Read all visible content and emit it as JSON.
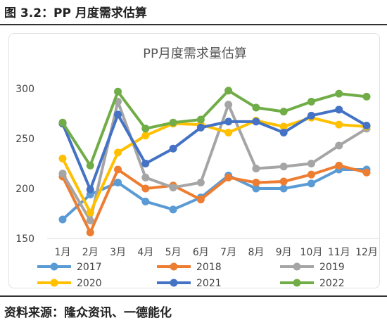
{
  "figure": {
    "caption": "图 3.2：PP 月度需求估算",
    "source": "资料来源：隆众资讯、一德能化"
  },
  "chart_data": {
    "type": "line",
    "title": "PP月度需求量估算",
    "xlabel": "",
    "ylabel": "",
    "categories": [
      "1月",
      "2月",
      "3月",
      "4月",
      "5月",
      "6月",
      "7月",
      "8月",
      "9月",
      "10月",
      "11月",
      "12月"
    ],
    "ylim": [
      150,
      300
    ],
    "yticks": [
      150,
      200,
      250,
      300
    ],
    "grid": false,
    "legend_position": "bottom",
    "series": [
      {
        "name": "2017",
        "color": "#5b9bd5",
        "values": [
          169,
          194,
          206,
          187,
          179,
          191,
          213,
          200,
          200,
          205,
          219,
          219
        ]
      },
      {
        "name": "2018",
        "color": "#ed7d31",
        "values": [
          212,
          156,
          219,
          200,
          203,
          189,
          211,
          206,
          207,
          214,
          223,
          216
        ]
      },
      {
        "name": "2019",
        "color": "#a5a5a5",
        "values": [
          215,
          168,
          287,
          211,
          201,
          206,
          284,
          220,
          222,
          225,
          243,
          260
        ]
      },
      {
        "name": "2020",
        "color": "#ffc000",
        "values": [
          230,
          176,
          236,
          253,
          265,
          264,
          256,
          268,
          262,
          271,
          264,
          262
        ]
      },
      {
        "name": "2021",
        "color": "#4472c4",
        "values": [
          265,
          199,
          274,
          225,
          240,
          261,
          267,
          267,
          256,
          273,
          279,
          263
        ]
      },
      {
        "name": "2022",
        "color": "#70ad47",
        "values": [
          266,
          223,
          297,
          260,
          266,
          269,
          298,
          281,
          277,
          287,
          295,
          292
        ]
      }
    ]
  }
}
